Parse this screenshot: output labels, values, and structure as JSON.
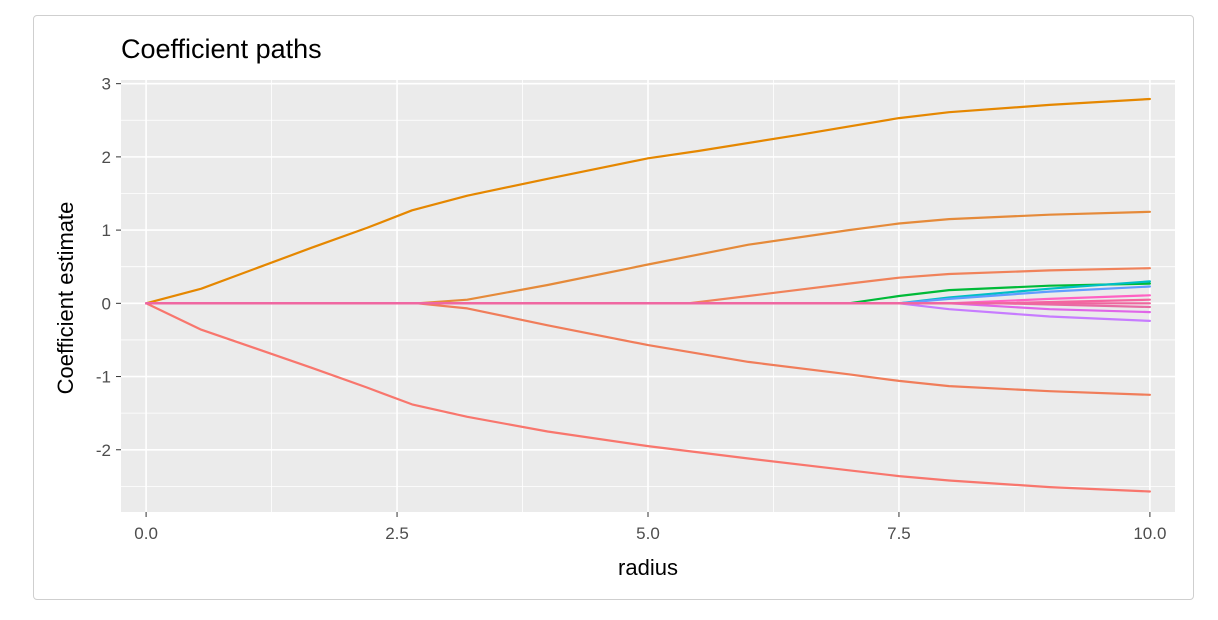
{
  "chart_data": {
    "type": "line",
    "title": "Coefficient paths",
    "xlabel": "radius",
    "ylabel": "Coefficient estimate",
    "xlim": [
      -0.25,
      10.25
    ],
    "ylim": [
      -2.85,
      3.05
    ],
    "x_ticks": [
      0.0,
      2.5,
      5.0,
      7.5,
      10.0
    ],
    "x_tick_labels": [
      "0.0",
      "2.5",
      "5.0",
      "7.5",
      "10.0"
    ],
    "y_ticks": [
      -2,
      -1,
      0,
      1,
      2,
      3
    ],
    "y_tick_labels": [
      "-2",
      "-1",
      "0",
      "1",
      "2",
      "3"
    ],
    "legend": "none",
    "grid": true,
    "panel_background": "#EBEBEB",
    "grid_color": "#FFFFFF",
    "series": [
      {
        "color": "#F8766D",
        "x": [
          0,
          0.55,
          1.1,
          1.65,
          2.2,
          2.65,
          3.2,
          4.0,
          5.0,
          6.0,
          7.0,
          7.5,
          8.0,
          9.0,
          10.0
        ],
        "y": [
          0,
          -0.36,
          -0.62,
          -0.88,
          -1.15,
          -1.38,
          -1.55,
          -1.75,
          -1.95,
          -2.12,
          -2.28,
          -2.36,
          -2.42,
          -2.51,
          -2.57
        ]
      },
      {
        "color": "#E58700",
        "x": [
          0,
          0.55,
          1.1,
          1.65,
          2.2,
          2.65,
          3.2,
          4.0,
          5.0,
          5.5,
          6.5,
          7.5,
          8.0,
          9.0,
          10.0
        ],
        "y": [
          0,
          0.2,
          0.48,
          0.76,
          1.03,
          1.27,
          1.47,
          1.7,
          1.98,
          2.08,
          2.3,
          2.53,
          2.61,
          2.71,
          2.79
        ]
      },
      {
        "color": "#E58A3A",
        "x": [
          0,
          2.7,
          3.2,
          4.0,
          5.0,
          6.0,
          7.0,
          7.5,
          8.0,
          9.0,
          10.0
        ],
        "y": [
          0,
          0,
          0.05,
          0.25,
          0.53,
          0.8,
          1.0,
          1.09,
          1.15,
          1.21,
          1.25
        ]
      },
      {
        "color": "#F07D5A",
        "x": [
          0,
          2.7,
          3.2,
          4.0,
          5.0,
          6.0,
          7.0,
          7.5,
          8.0,
          9.0,
          10.0
        ],
        "y": [
          0,
          0,
          -0.07,
          -0.3,
          -0.57,
          -0.8,
          -0.97,
          -1.06,
          -1.13,
          -1.2,
          -1.25
        ]
      },
      {
        "color": "#F0825A",
        "x": [
          0,
          5.4,
          6.0,
          7.0,
          7.5,
          8.0,
          9.0,
          10.0
        ],
        "y": [
          0,
          0,
          0.1,
          0.27,
          0.35,
          0.4,
          0.45,
          0.48
        ]
      },
      {
        "color": "#00BA38",
        "x": [
          0,
          7.0,
          7.5,
          8.0,
          9.0,
          10.0
        ],
        "y": [
          0,
          0,
          0.1,
          0.18,
          0.24,
          0.27
        ]
      },
      {
        "color": "#00BFC4",
        "x": [
          0,
          7.5,
          8.0,
          9.0,
          10.0
        ],
        "y": [
          0,
          0,
          0.08,
          0.2,
          0.3
        ]
      },
      {
        "color": "#619CFF",
        "x": [
          0,
          7.5,
          8.0,
          9.0,
          10.0
        ],
        "y": [
          0,
          0,
          0.06,
          0.16,
          0.23
        ]
      },
      {
        "color": "#C77CFF",
        "x": [
          0,
          7.5,
          8.0,
          9.0,
          10.0
        ],
        "y": [
          0,
          0,
          -0.08,
          -0.18,
          -0.24
        ]
      },
      {
        "color": "#E066E8",
        "x": [
          0,
          8.0,
          9.0,
          10.0
        ],
        "y": [
          0,
          0,
          -0.08,
          -0.12
        ]
      },
      {
        "color": "#FF61C3",
        "x": [
          0,
          8.0,
          9.0,
          10.0
        ],
        "y": [
          0,
          0,
          0.06,
          0.11
        ]
      },
      {
        "color": "#F564A0",
        "x": [
          0,
          8.5,
          10.0
        ],
        "y": [
          0,
          0,
          0.05
        ]
      },
      {
        "color": "#E76BA3",
        "x": [
          0,
          8.5,
          10.0
        ],
        "y": [
          0,
          0,
          -0.05
        ]
      },
      {
        "color": "#F0679F",
        "x": [
          0,
          10.0
        ],
        "y": [
          0,
          0
        ]
      }
    ]
  }
}
